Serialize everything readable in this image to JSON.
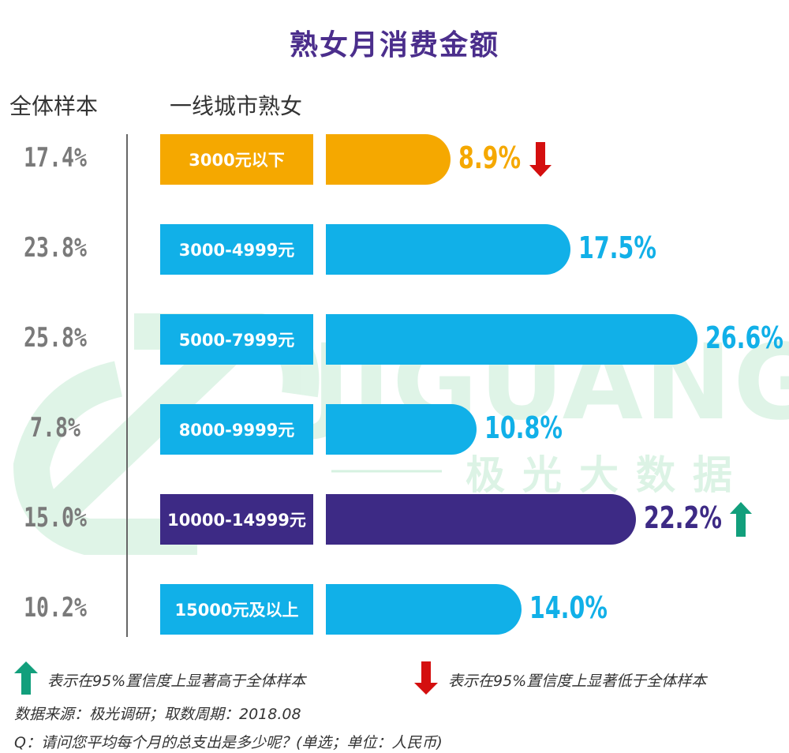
{
  "title": "熟女月消费金额",
  "header_left": "全体样本",
  "header_right": "一线城市熟女",
  "watermark": {
    "brand": "JIGUANG",
    "sub": "极光大数据"
  },
  "colors": {
    "orange": "#f5a800",
    "blue": "#11b0e8",
    "purple": "#3d2a85",
    "gray": "#7a7a7a",
    "up_arrow": "#129f7c",
    "down_arrow": "#d40f0f"
  },
  "chart_data": {
    "type": "bar",
    "title": "熟女月消费金额",
    "categories": [
      "3000元以下",
      "3000-4999元",
      "5000-7999元",
      "8000-9999元",
      "10000-14999元",
      "15000元及以上"
    ],
    "series": [
      {
        "name": "全体样本",
        "values": [
          17.4,
          23.8,
          25.8,
          7.8,
          15.0,
          10.2
        ],
        "labels": [
          "17.4%",
          "23.8%",
          "25.8%",
          "7.8%",
          "15.0%",
          "10.2%"
        ]
      },
      {
        "name": "一线城市熟女",
        "values": [
          8.9,
          17.5,
          26.6,
          10.8,
          22.2,
          14.0
        ],
        "labels": [
          "8.9%",
          "17.5%",
          "26.6%",
          "10.8%",
          "22.2%",
          "14.0%"
        ]
      }
    ],
    "significance": [
      "down",
      null,
      null,
      null,
      "up",
      null
    ],
    "bar_colors": [
      "orange",
      "blue",
      "blue",
      "blue",
      "purple",
      "blue"
    ]
  },
  "legend": {
    "up_text": "表示在95%置信度上显著高于全体样本",
    "down_text": "表示在95%置信度上显著低于全体样本"
  },
  "footer": {
    "source": "数据来源：极光调研；取数周期：2018.08",
    "question": "Q：请问您平均每个月的总支出是多少呢？(单选；单位：人民币)"
  }
}
